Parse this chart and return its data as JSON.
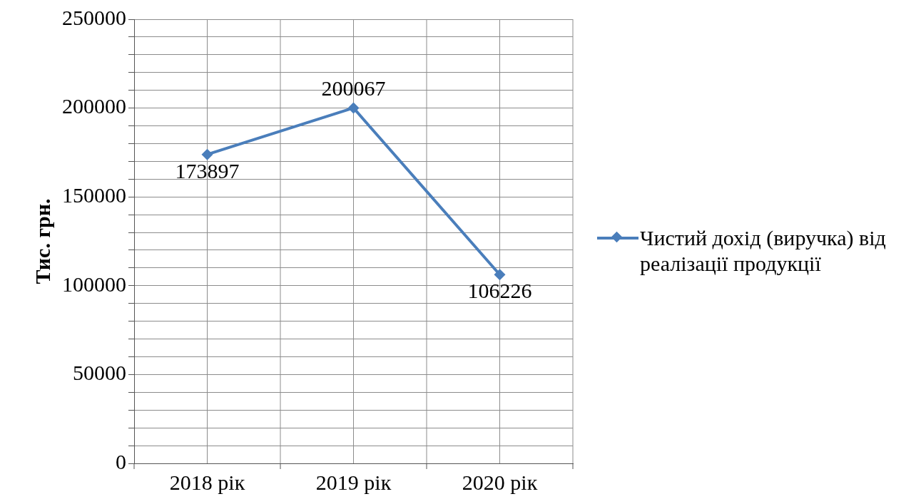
{
  "chart_data": {
    "type": "line",
    "ylabel": "Тис. грн.",
    "categories": [
      "2018 рік",
      "2019 рік",
      "2020 рік"
    ],
    "series": [
      {
        "name": "Чистий дохід (виручка) від реалізації продукції",
        "color": "#4a7ebb",
        "values": [
          173897,
          200067,
          106226
        ]
      }
    ],
    "ylim": [
      0,
      250000
    ],
    "yticks": [
      0,
      {
        "value": 10000,
        "label": null
      },
      {
        "value": 20000,
        "label": null
      },
      {
        "value": 30000,
        "label": null
      },
      {
        "value": 40000,
        "label": null
      },
      50000,
      {
        "value": 60000,
        "label": null
      },
      {
        "value": 70000,
        "label": null
      },
      {
        "value": 80000,
        "label": null
      },
      {
        "value": 90000,
        "label": null
      },
      100000,
      {
        "value": 110000,
        "label": null
      },
      {
        "value": 120000,
        "label": null
      },
      {
        "value": 130000,
        "label": null
      },
      {
        "value": 140000,
        "label": null
      },
      150000,
      {
        "value": 160000,
        "label": null
      },
      {
        "value": 170000,
        "label": null
      },
      {
        "value": 180000,
        "label": null
      },
      {
        "value": 190000,
        "label": null
      },
      200000,
      {
        "value": 210000,
        "label": null
      },
      {
        "value": 220000,
        "label": null
      },
      {
        "value": 230000,
        "label": null
      },
      {
        "value": 240000,
        "label": null
      },
      250000
    ],
    "grid": true,
    "legend": "right",
    "marker": "diamond",
    "line_style": "solid",
    "data_labels": true
  }
}
